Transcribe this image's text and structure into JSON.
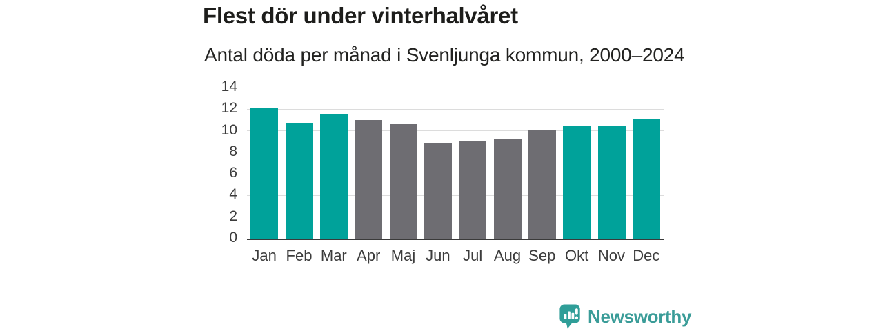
{
  "header": {
    "title": "Flest dör under vinterhalvåret",
    "subtitle": "Antal döda per månad i Svenljunga kommun, 2000–2024"
  },
  "chart_data": {
    "type": "bar",
    "title": "Flest dör under vinterhalvåret",
    "subtitle": "Antal döda per månad i Svenljunga kommun, 2000–2024",
    "categories": [
      "Jan",
      "Feb",
      "Mar",
      "Apr",
      "Maj",
      "Jun",
      "Jul",
      "Aug",
      "Sep",
      "Okt",
      "Nov",
      "Dec"
    ],
    "values": [
      12.1,
      10.7,
      11.6,
      11.0,
      10.6,
      8.8,
      9.1,
      9.2,
      10.1,
      10.5,
      10.4,
      11.1
    ],
    "bar_colors": [
      "#00a29a",
      "#00a29a",
      "#00a29a",
      "#6e6d72",
      "#6e6d72",
      "#6e6d72",
      "#6e6d72",
      "#6e6d72",
      "#6e6d72",
      "#00a29a",
      "#00a29a",
      "#00a29a"
    ],
    "highlight_color": "#00a29a",
    "muted_color": "#6e6d72",
    "xlabel": "",
    "ylabel": "",
    "ylim": [
      0,
      14
    ],
    "yticks": [
      0,
      2,
      4,
      6,
      8,
      10,
      12,
      14
    ],
    "grid": true,
    "legend": false,
    "gridline_color": "#dcdcdc",
    "axis_line_color": "#3a3a3a",
    "tick_label_color": "#3c3c3c"
  },
  "footer": {
    "logo_text": "Newsworthy",
    "logo_color": "#3a9c98",
    "logo_icon": "speech-bubble-bar-chart-icon"
  }
}
